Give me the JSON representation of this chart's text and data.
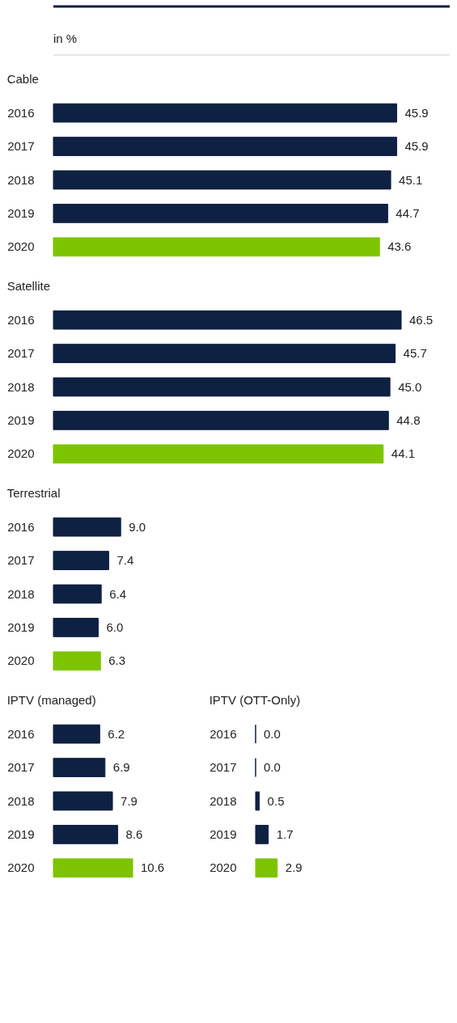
{
  "chart_data": [
    {
      "type": "bar",
      "orientation": "horizontal",
      "subtitle": "in %",
      "title": "Cable",
      "categories": [
        "2016",
        "2017",
        "2018",
        "2019",
        "2020"
      ],
      "values": [
        45.9,
        45.9,
        45.1,
        44.7,
        43.6
      ],
      "colors": [
        "#0f2142",
        "#0f2142",
        "#0f2142",
        "#0f2142",
        "#7dc400"
      ],
      "value_labels": [
        "45.9",
        "45.9",
        "45.1",
        "44.7",
        "43.6"
      ]
    },
    {
      "type": "bar",
      "orientation": "horizontal",
      "title": "Satellite",
      "categories": [
        "2016",
        "2017",
        "2018",
        "2019",
        "2020"
      ],
      "values": [
        46.5,
        45.7,
        45.0,
        44.8,
        44.1
      ],
      "colors": [
        "#0f2142",
        "#0f2142",
        "#0f2142",
        "#0f2142",
        "#7dc400"
      ],
      "value_labels": [
        "46.5",
        "45.7",
        "45.0",
        "44.8",
        "44.1"
      ]
    },
    {
      "type": "bar",
      "orientation": "horizontal",
      "title": "Terrestrial",
      "categories": [
        "2016",
        "2017",
        "2018",
        "2019",
        "2020"
      ],
      "values": [
        9.0,
        7.4,
        6.4,
        6.0,
        6.3
      ],
      "colors": [
        "#0f2142",
        "#0f2142",
        "#0f2142",
        "#0f2142",
        "#7dc400"
      ],
      "value_labels": [
        "9.0",
        "7.4",
        "6.4",
        "6.0",
        "6.3"
      ]
    },
    {
      "type": "bar",
      "orientation": "horizontal",
      "title": "IPTV (managed)",
      "categories": [
        "2016",
        "2017",
        "2018",
        "2019",
        "2020"
      ],
      "values": [
        6.2,
        6.9,
        7.9,
        8.6,
        10.6
      ],
      "colors": [
        "#0f2142",
        "#0f2142",
        "#0f2142",
        "#0f2142",
        "#7dc400"
      ],
      "value_labels": [
        "6.2",
        "6.9",
        "7.9",
        "8.6",
        "10.6"
      ]
    },
    {
      "type": "bar",
      "orientation": "horizontal",
      "title": "IPTV (OTT-Only)",
      "categories": [
        "2016",
        "2017",
        "2018",
        "2019",
        "2020"
      ],
      "values": [
        0.0,
        0.0,
        0.5,
        1.7,
        2.9
      ],
      "colors": [
        "#0f2142",
        "#0f2142",
        "#0f2142",
        "#0f2142",
        "#7dc400"
      ],
      "value_labels": [
        "0.0",
        "0.0",
        "0.5",
        "1.7",
        "2.9"
      ]
    }
  ]
}
